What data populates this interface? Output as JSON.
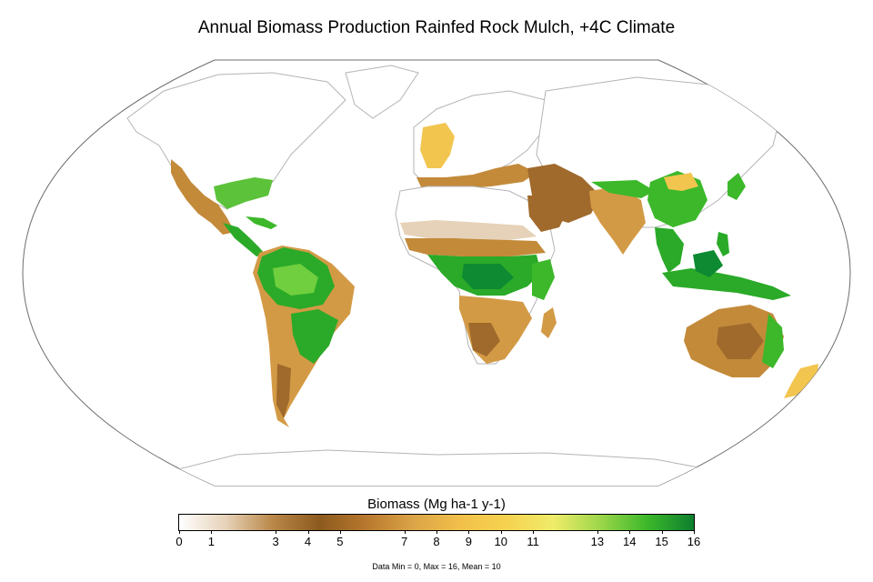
{
  "title": "Annual Biomass Production Rainfed Rock Mulch, +4C Climate",
  "legend": {
    "title": "Biomass (Mg ha-1 y-1)",
    "ticks": [
      "0",
      "1",
      "3",
      "4",
      "5",
      "7",
      "8",
      "9",
      "10",
      "11",
      "13",
      "14",
      "15",
      "16"
    ],
    "tick_values": [
      0,
      1,
      3,
      4,
      5,
      7,
      8,
      9,
      10,
      11,
      13,
      14,
      15,
      16
    ],
    "min": 0,
    "max": 16,
    "colors": [
      "#ffffff",
      "#e6d2b8",
      "#b98748",
      "#8c5a1e",
      "#b8782e",
      "#dba447",
      "#f2c04a",
      "#f5d24f",
      "#f0ec6a",
      "#9cd64a",
      "#3cb82a",
      "#0d7f2e"
    ]
  },
  "stats": "Data Min = 0, Max = 16, Mean = 10",
  "colors": {
    "map_outline": "#6e6e6e",
    "coastline": "#b4b4b4",
    "desert_low": "#f2ebe4",
    "brown": "#a06a2c",
    "tan": "#d39a45",
    "yellow": "#f2c54f",
    "light_green": "#8fd043",
    "green": "#2aaa28",
    "dark_green": "#0d8a32"
  }
}
